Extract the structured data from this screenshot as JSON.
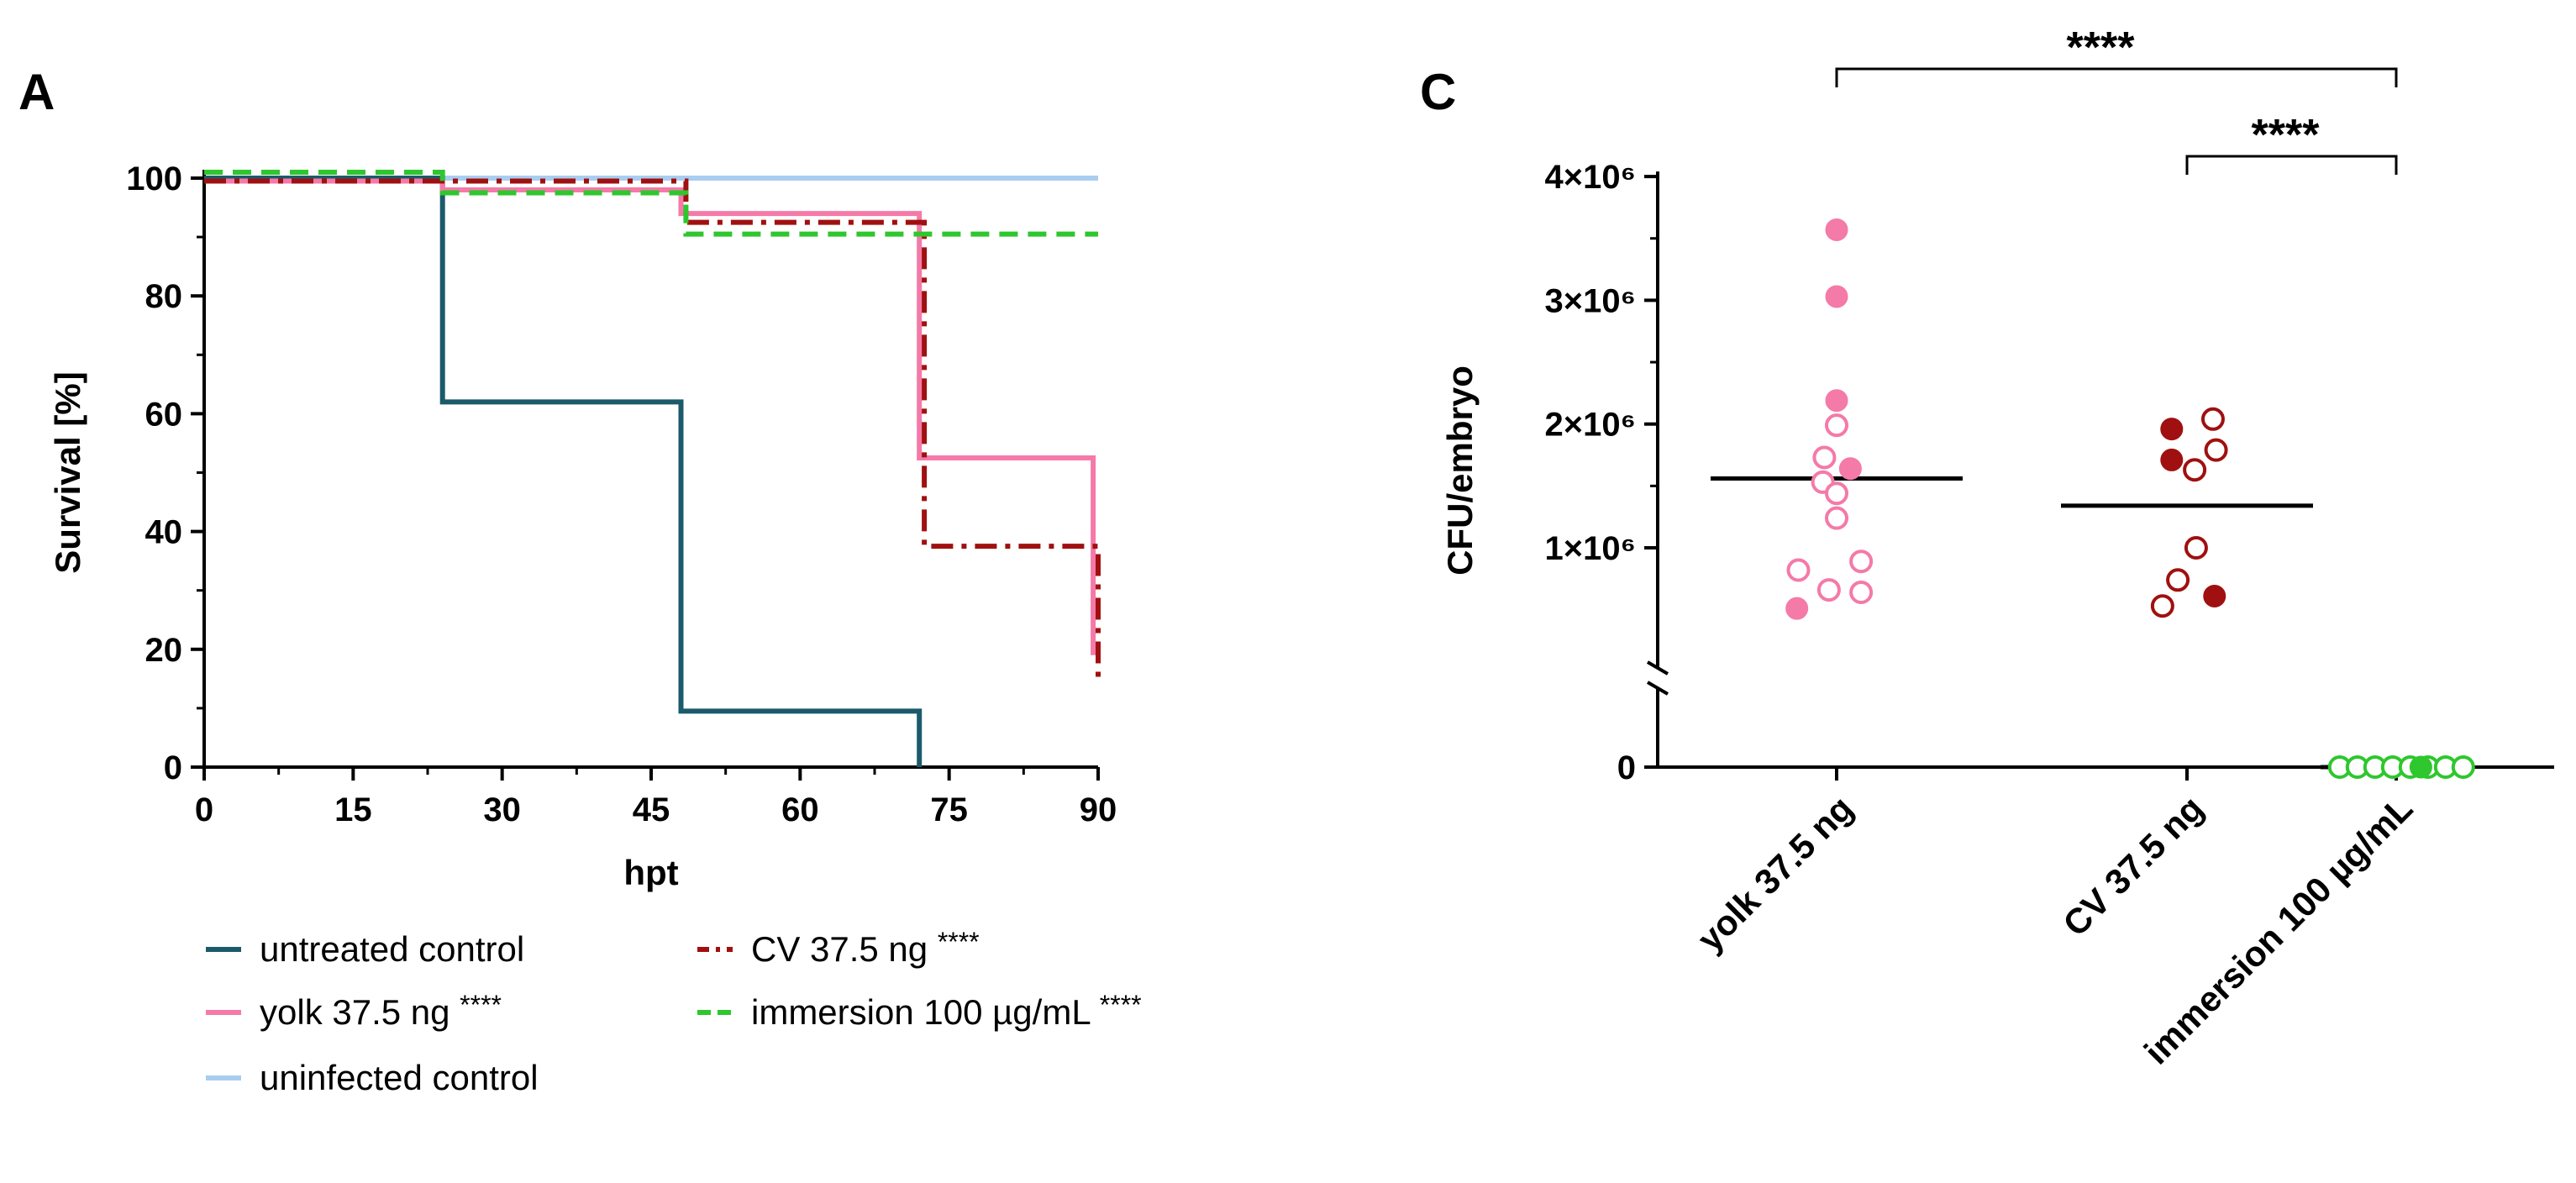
{
  "chart_data": [
    {
      "panel": "A",
      "type": "line",
      "subtype": "kaplan-meier survival",
      "xlabel": "hpt",
      "ylabel": "Survival [%]",
      "xlim": [
        0,
        90
      ],
      "ylim": [
        0,
        100
      ],
      "xticks": [
        0,
        15,
        30,
        45,
        60,
        75,
        90
      ],
      "yticks": [
        0,
        20,
        40,
        60,
        80,
        100
      ],
      "series": [
        {
          "name": "untreated control",
          "significance": "",
          "color": "#1b5a6b",
          "dash": "solid",
          "points": [
            [
              0,
              100
            ],
            [
              24,
              100
            ],
            [
              24,
              62
            ],
            [
              48,
              62
            ],
            [
              48,
              9.5
            ],
            [
              72,
              9.5
            ],
            [
              72,
              0
            ]
          ]
        },
        {
          "name": "yolk 37.5 ng",
          "significance": "****",
          "color": "#f47aa8",
          "dash": "solid",
          "points": [
            [
              0,
              99.5
            ],
            [
              24,
              99.5
            ],
            [
              24,
              98
            ],
            [
              48,
              98
            ],
            [
              48,
              94
            ],
            [
              72,
              94
            ],
            [
              72,
              52.5
            ],
            [
              89.5,
              52.5
            ],
            [
              89.5,
              19
            ]
          ]
        },
        {
          "name": "uninfected control",
          "significance": "",
          "color": "#a8cdf0",
          "dash": "solid",
          "points": [
            [
              0,
              100
            ],
            [
              90,
              100
            ]
          ]
        },
        {
          "name": "CV 37.5 ng",
          "significance": "****",
          "color": "#a01010",
          "dash": "dashdot",
          "points": [
            [
              0,
              99.5
            ],
            [
              48.5,
              99.5
            ],
            [
              48.5,
              92.5
            ],
            [
              72.5,
              92.5
            ],
            [
              72.5,
              37.5
            ],
            [
              90,
              37.5
            ],
            [
              90,
              15
            ]
          ]
        },
        {
          "name": "immersion 100 µg/mL",
          "significance": "****",
          "color": "#2ec72e",
          "dash": "dashed",
          "points": [
            [
              0,
              101
            ],
            [
              24,
              101
            ],
            [
              24,
              97.5
            ],
            [
              48.5,
              97.5
            ],
            [
              48.5,
              90.5
            ],
            [
              90,
              90.5
            ]
          ]
        }
      ]
    },
    {
      "panel": "C",
      "type": "scatter",
      "subtype": "dot plot with median line",
      "ylabel": "CFU/embryo",
      "yticks": [
        "0",
        "1×10⁶",
        "2×10⁶",
        "3×10⁶",
        "4×10⁶"
      ],
      "ylim": [
        0,
        4000000
      ],
      "axis_break": true,
      "categories": [
        "yolk 37.5 ng",
        "CV 37.5 ng",
        "immersion 100 µg/mL"
      ],
      "groups": [
        {
          "name": "yolk 37.5 ng",
          "color": "#f47aa8",
          "median": 1560000,
          "filled": [
            [
              0.0,
              3570000
            ],
            [
              0.0,
              3030000
            ],
            [
              0.0,
              2190000
            ],
            [
              0.09,
              1640000
            ],
            [
              -0.26,
              510000
            ]
          ],
          "open": [
            [
              -0.08,
              1730000
            ],
            [
              0.0,
              1990000
            ],
            [
              -0.09,
              1530000
            ],
            [
              0.0,
              1440000
            ],
            [
              0.0,
              1240000
            ],
            [
              -0.25,
              820000
            ],
            [
              0.16,
              890000
            ],
            [
              -0.05,
              660000
            ],
            [
              0.16,
              640000
            ]
          ]
        },
        {
          "name": "CV 37.5 ng",
          "color": "#a01010",
          "filled": [
            [
              -0.1,
              1960000
            ],
            [
              -0.1,
              1710000
            ],
            [
              0.18,
              610000
            ]
          ],
          "open": [
            [
              0.17,
              2040000
            ],
            [
              0.19,
              1790000
            ],
            [
              0.05,
              1630000
            ],
            [
              0.06,
              1000000
            ],
            [
              -0.06,
              740000
            ],
            [
              -0.16,
              530000
            ]
          ],
          "median": 1340000
        },
        {
          "name": "immersion 100 µg/mL",
          "color": "#2ec72e",
          "median": 0,
          "filled": [
            [
              0.07,
              0
            ]
          ],
          "open": [
            [
              -0.16,
              0
            ],
            [
              -0.11,
              0
            ],
            [
              -0.06,
              0
            ],
            [
              -0.01,
              0
            ],
            [
              0.04,
              0
            ],
            [
              0.09,
              0
            ],
            [
              0.14,
              0
            ],
            [
              0.19,
              0
            ]
          ]
        }
      ],
      "comparisons": [
        {
          "from": "yolk 37.5 ng",
          "to": "immersion 100 µg/mL",
          "label": "****"
        },
        {
          "from": "CV 37.5 ng",
          "to": "immersion 100 µg/mL",
          "label": "****"
        }
      ]
    }
  ],
  "panels": {
    "a_label": "A",
    "c_label": "C"
  }
}
